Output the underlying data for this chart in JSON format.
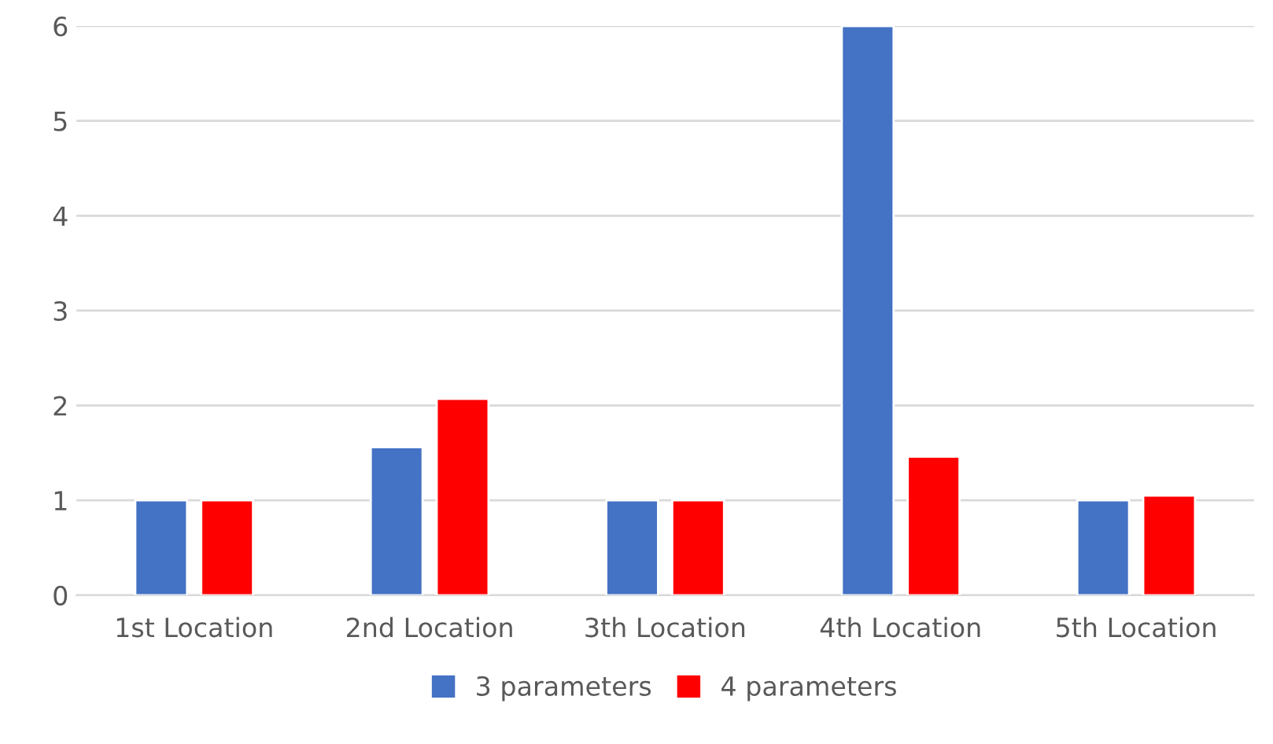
{
  "chart_data": {
    "type": "bar",
    "categories": [
      "1st Location",
      "2nd Location",
      "3th Location",
      "4th Location",
      "5th Location"
    ],
    "series": [
      {
        "name": "3 parameters",
        "color": "#4472c4",
        "values": [
          1,
          1.56,
          1,
          6,
          1
        ]
      },
      {
        "name": "4 parameters",
        "color": "#ff0000",
        "values": [
          1,
          2.07,
          1,
          1.46,
          1.05
        ]
      }
    ],
    "ylim": [
      0,
      6
    ],
    "yticks": [
      0,
      1,
      2,
      3,
      4,
      5,
      6
    ],
    "grid": "y",
    "legend": "bottom"
  }
}
